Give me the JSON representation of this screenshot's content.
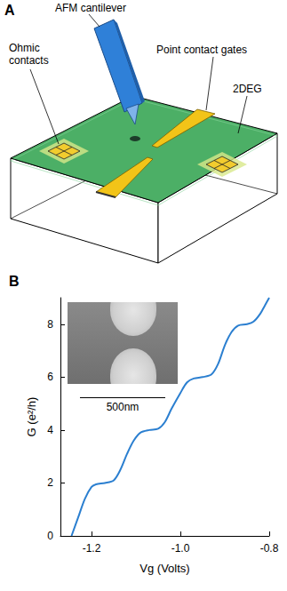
{
  "panel_a": {
    "label": "A",
    "labels": {
      "cantilever": "AFM cantilever",
      "gates": "Point contact gates",
      "contacts": [
        "Ohmic",
        "contacts"
      ],
      "gas": "2DEG"
    }
  },
  "chart_data": {
    "type": "line",
    "title": "B",
    "x": [
      -1.245,
      -1.23,
      -1.215,
      -1.2,
      -1.19,
      -1.17,
      -1.15,
      -1.135,
      -1.12,
      -1.105,
      -1.09,
      -1.07,
      -1.05,
      -1.035,
      -1.02,
      -1.0,
      -0.985,
      -0.97,
      -0.95,
      -0.93,
      -0.915,
      -0.9,
      -0.885,
      -0.87,
      -0.85,
      -0.835,
      -0.82,
      -0.81,
      -0.8
    ],
    "values": [
      0,
      0.7,
      1.4,
      1.85,
      1.95,
      2.0,
      2.1,
      2.5,
      3.1,
      3.6,
      3.9,
      4.0,
      4.05,
      4.3,
      4.8,
      5.4,
      5.8,
      5.95,
      6.0,
      6.1,
      6.5,
      7.2,
      7.7,
      7.95,
      8.0,
      8.1,
      8.4,
      8.7,
      9.0
    ],
    "color": "#2b7fd0",
    "xlabel": "Vg (Volts)",
    "ylabel": "G (e²/h)",
    "xlim": [
      -1.27,
      -0.8
    ],
    "xticks": [
      -1.2,
      {
        "value": -1,
        "label": "-1.0"
      },
      -0.8
    ],
    "ylim": [
      0,
      9
    ],
    "yticks": [
      0,
      2,
      4,
      6,
      8
    ],
    "grid": false,
    "annotations": [
      "500nm"
    ]
  }
}
